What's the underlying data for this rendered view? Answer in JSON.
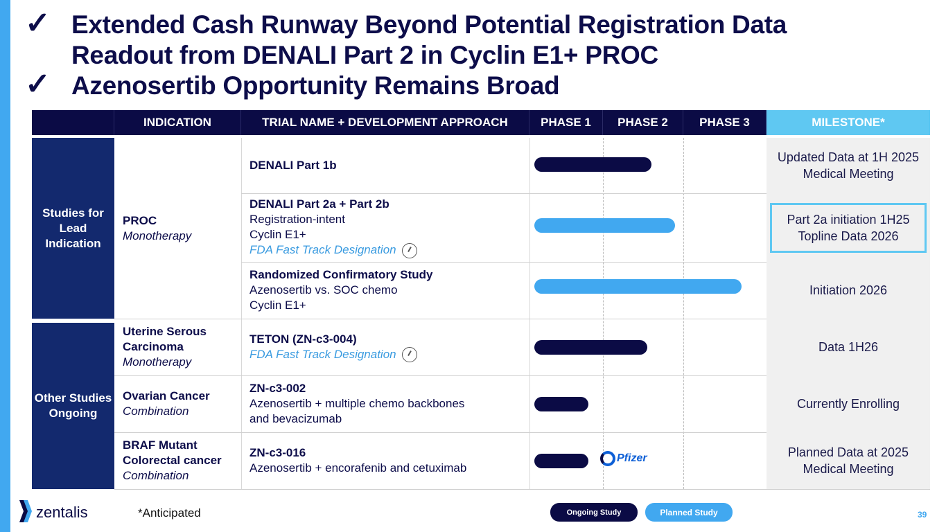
{
  "title": {
    "lines": [
      "Extended Cash Runway Beyond Potential Registration Data",
      "Readout from DENALI Part 2 in Cyclin E1+ PROC",
      "Azenosertib Opportunity Remains Broad"
    ],
    "check_icon": "checkmark"
  },
  "headers": [
    "INDICATION",
    "TRIAL NAME + DEVELOPMENT APPROACH",
    "PHASE 1",
    "PHASE 2",
    "PHASE 3",
    "MILESTONE*"
  ],
  "groups": [
    "Studies for Lead Indication",
    "Other Studies Ongoing"
  ],
  "indications": [
    {
      "name": "PROC",
      "approach": "Monotherapy"
    },
    {
      "name": "Uterine Serous Carcinoma",
      "approach": "Monotherapy"
    },
    {
      "name": "Ovarian Cancer",
      "approach": "Combination"
    },
    {
      "name": "BRAF Mutant Colorectal cancer",
      "approach": "Combination"
    }
  ],
  "trials": [
    {
      "name": "DENALI Part 1b",
      "details": [],
      "fast_track": "",
      "status": "ongoing",
      "progress_phases": 1.6,
      "milestone": "Updated Data at 1H 2025 Medical Meeting"
    },
    {
      "name": "DENALI Part 2a + Part 2b",
      "details": [
        "Registration-intent",
        "Cyclin E1+"
      ],
      "fast_track": "FDA Fast Track Designation",
      "status": "planned",
      "progress_phases": 1.9,
      "milestone": "Part 2a initiation 1H25 Topline Data 2026",
      "highlighted": true
    },
    {
      "name": "Randomized Confirmatory Study",
      "details": [
        "Azenosertib vs. SOC chemo",
        "Cyclin E1+"
      ],
      "fast_track": "",
      "status": "planned",
      "progress_phases": 2.7,
      "milestone": "Initiation 2026"
    },
    {
      "name": "TETON (ZN-c3-004)",
      "details": [],
      "fast_track": "FDA Fast Track Designation",
      "status": "ongoing",
      "progress_phases": 1.55,
      "milestone": "Data 1H26"
    },
    {
      "name": "ZN-c3-002",
      "details": [
        "Azenosertib + multiple chemo backbones",
        "and bevacizumab"
      ],
      "fast_track": "",
      "status": "ongoing",
      "progress_phases": 0.8,
      "milestone": "Currently Enrolling"
    },
    {
      "name": "ZN-c3-016",
      "details": [
        "Azenosertib + encorafenib and cetuximab"
      ],
      "fast_track": "",
      "status": "ongoing",
      "progress_phases": 0.8,
      "milestone": "Planned Data at 2025 Medical Meeting",
      "partner_logo": "Pfizer"
    }
  ],
  "footer": {
    "logo": "zentalis",
    "note": "*Anticipated",
    "legend": [
      "Ongoing Study",
      "Planned Study"
    ],
    "page": "39"
  },
  "colors": {
    "ongoing": "#0b0b45",
    "planned": "#41a8f0",
    "group": "#13296e",
    "milestone_header": "#5fc8f2",
    "highlight": "#5fc8f2"
  }
}
